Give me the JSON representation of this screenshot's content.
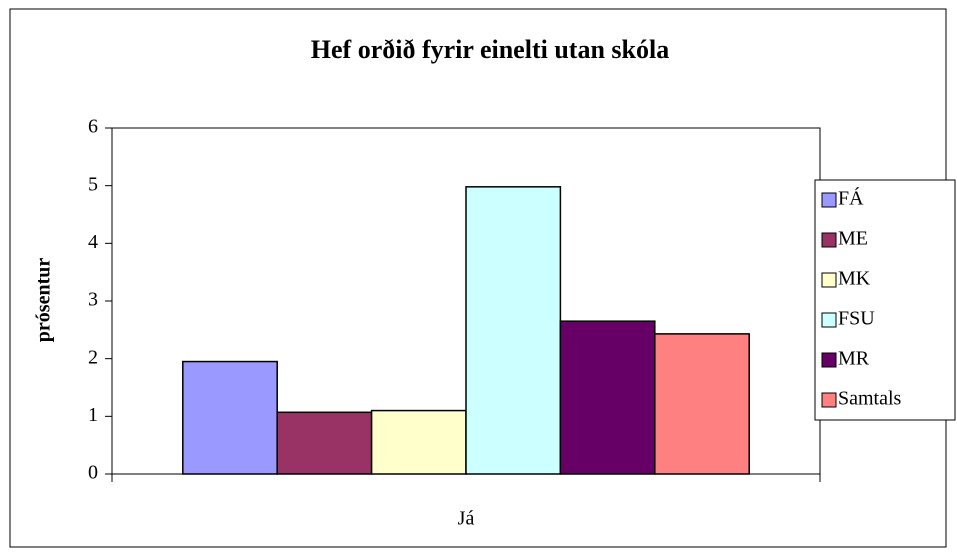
{
  "chart_data": {
    "type": "bar",
    "title": "Hef orðið fyrir einelti utan skóla",
    "y_label": "prósentur",
    "categories": [
      "Já"
    ],
    "series": [
      {
        "name": "FÁ",
        "color": "#9999ff",
        "values": [
          1.95
        ]
      },
      {
        "name": "ME",
        "color": "#993366",
        "values": [
          1.07
        ]
      },
      {
        "name": "MK",
        "color": "#ffffcc",
        "values": [
          1.1
        ]
      },
      {
        "name": "FSU",
        "color": "#ccffff",
        "values": [
          4.98
        ]
      },
      {
        "name": "MR",
        "color": "#660066",
        "values": [
          2.65
        ]
      },
      {
        "name": "Samtals",
        "color": "#ff8080",
        "values": [
          2.43
        ]
      }
    ],
    "ylim": [
      0,
      6
    ],
    "yticks": [
      0,
      1,
      2,
      3,
      4,
      5,
      6
    ],
    "grid": false,
    "legend": "right"
  }
}
